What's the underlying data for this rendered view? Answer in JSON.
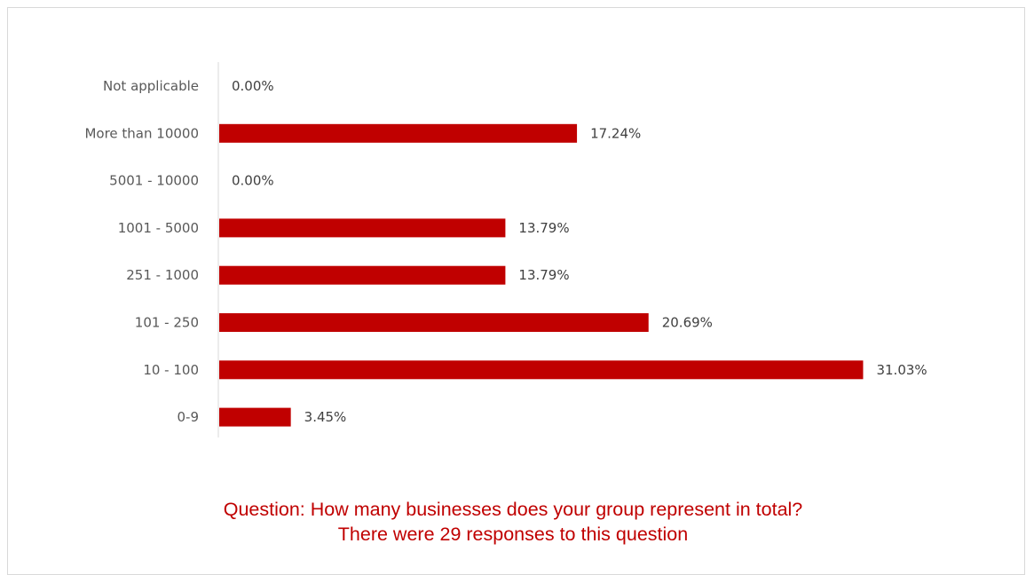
{
  "chart_data": {
    "type": "bar",
    "orientation": "horizontal",
    "categories": [
      "Not applicable",
      "More than 10000",
      "5001 - 10000",
      "1001 - 5000",
      "251 - 1000",
      "101 - 250",
      "10 - 100",
      "0-9"
    ],
    "values": [
      0.0,
      17.24,
      0.0,
      13.79,
      13.79,
      20.69,
      31.03,
      3.45
    ],
    "value_labels": [
      "0.00%",
      "17.24%",
      "0.00%",
      "13.79%",
      "13.79%",
      "20.69%",
      "31.03%",
      "3.45%"
    ],
    "unit": "%",
    "bar_color": "#c00000",
    "grid": false,
    "legend": "none"
  },
  "caption": {
    "question": "Question: How many businesses does your group represent in total?",
    "responses": "There were 29 responses to this question"
  },
  "colors": {
    "accent": "#c00000",
    "axis": "#d9d9d9",
    "category_text": "#595959",
    "value_text": "#404040"
  }
}
